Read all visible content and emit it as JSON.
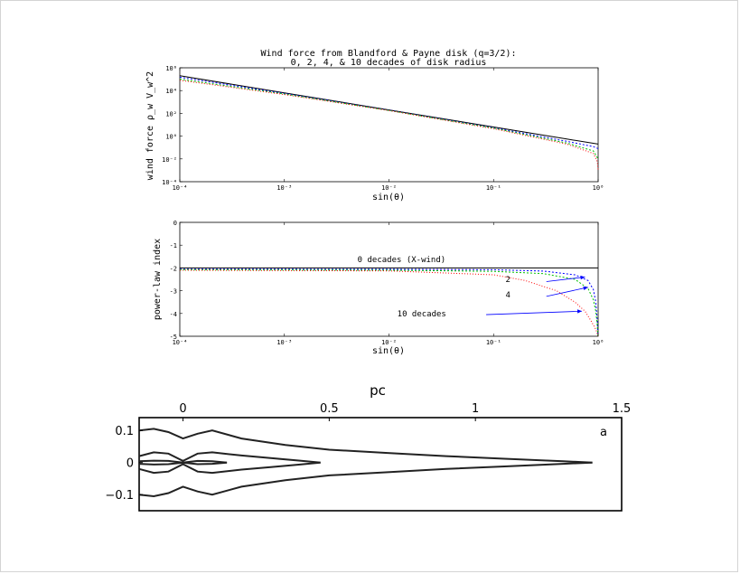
{
  "charts": {
    "top": {
      "type": "line",
      "title_line1": "Wind force from Blandford & Payne disk (q=3/2):",
      "title_line2": "0, 2, 4, & 10 decades of disk radius",
      "xlabel": "sin(θ)",
      "ylabel": "wind force ρ_w V_w^2",
      "x_scale": "log",
      "y_scale": "log",
      "xlim": [
        0.0001,
        1
      ],
      "ylim": [
        0.0001,
        1000000
      ],
      "xticks": [
        {
          "v": 0.0001,
          "label": "10⁻⁴"
        },
        {
          "v": 0.001,
          "label": "10⁻³"
        },
        {
          "v": 0.01,
          "label": "10⁻²"
        },
        {
          "v": 0.1,
          "label": "10⁻¹"
        },
        {
          "v": 1,
          "label": "10⁰"
        }
      ],
      "yticks": [
        {
          "v": 0.0001,
          "label": "10⁻⁴"
        },
        {
          "v": 0.01,
          "label": "10⁻²"
        },
        {
          "v": 1,
          "label": "10⁰"
        },
        {
          "v": 100,
          "label": "10²"
        },
        {
          "v": 10000,
          "label": "10⁴"
        },
        {
          "v": 1000000,
          "label": "10⁶"
        }
      ],
      "series": [
        {
          "color": "#000000",
          "dash": "",
          "x": [
            0.0001,
            0.001,
            0.01,
            0.1,
            0.5,
            1
          ],
          "y": [
            200000,
            6300,
            200,
            6.3,
            0.56,
            0.2
          ]
        },
        {
          "color": "#0000ff",
          "dash": "2,2",
          "x": [
            0.0001,
            0.001,
            0.01,
            0.1,
            0.5,
            0.9,
            1
          ],
          "y": [
            150000,
            5600,
            190,
            5.5,
            0.35,
            0.12,
            0.08
          ]
        },
        {
          "color": "#00c000",
          "dash": "2,2",
          "x": [
            0.0001,
            0.001,
            0.01,
            0.1,
            0.5,
            0.9,
            1
          ],
          "y": [
            100000,
            5000,
            180,
            5,
            0.25,
            0.05,
            0.01
          ]
        },
        {
          "color": "#ff0000",
          "dash": "1,2",
          "x": [
            0.0001,
            0.001,
            0.01,
            0.1,
            0.5,
            0.9,
            0.98,
            1
          ],
          "y": [
            80000,
            4500,
            175,
            4.5,
            0.2,
            0.03,
            0.006,
            0.0012
          ]
        }
      ]
    },
    "middle": {
      "type": "line",
      "xlabel": "sin(θ)",
      "ylabel": "power-law index",
      "x_scale": "log",
      "xlim": [
        0.0001,
        1
      ],
      "ylim": [
        -5,
        0
      ],
      "xticks": [
        {
          "v": 0.0001,
          "label": "10⁻⁴"
        },
        {
          "v": 0.001,
          "label": "10⁻³"
        },
        {
          "v": 0.01,
          "label": "10⁻²"
        },
        {
          "v": 0.1,
          "label": "10⁻¹"
        },
        {
          "v": 1,
          "label": "10⁰"
        }
      ],
      "yticks": [
        {
          "v": 0,
          "label": "0"
        },
        {
          "v": -1,
          "label": "-1"
        },
        {
          "v": -2,
          "label": "-2"
        },
        {
          "v": -3,
          "label": "-3"
        },
        {
          "v": -4,
          "label": "-4"
        },
        {
          "v": -5,
          "label": "-5"
        }
      ],
      "annotations": [
        {
          "label": "0 decades (X-wind)",
          "x": 0.005,
          "y": -1.75
        },
        {
          "label": "2",
          "x": 0.13,
          "y": -2.62
        },
        {
          "label": "4",
          "x": 0.13,
          "y": -3.3
        },
        {
          "label": "10 decades",
          "x": 0.012,
          "y": -4.12
        }
      ],
      "arrows": [
        {
          "from": [
            0.32,
            -2.6
          ],
          "to": [
            0.75,
            -2.4
          ]
        },
        {
          "from": [
            0.32,
            -3.25
          ],
          "to": [
            0.8,
            -2.85
          ]
        },
        {
          "from": [
            0.085,
            -4.05
          ],
          "to": [
            0.7,
            -3.9
          ]
        }
      ],
      "series": [
        {
          "color": "#000000",
          "dash": "",
          "x": [
            0.0001,
            0.01,
            0.5,
            1
          ],
          "y": [
            -2,
            -2,
            -2,
            -2
          ]
        },
        {
          "color": "#0000ff",
          "dash": "2,2",
          "x": [
            0.0001,
            0.01,
            0.1,
            0.3,
            0.6,
            0.8,
            0.9,
            0.95,
            0.98,
            0.995
          ],
          "y": [
            -2.05,
            -2.06,
            -2.08,
            -2.14,
            -2.3,
            -2.55,
            -2.95,
            -3.5,
            -4.3,
            -5
          ]
        },
        {
          "color": "#00c000",
          "dash": "2,2",
          "x": [
            0.0001,
            0.01,
            0.1,
            0.3,
            0.6,
            0.8,
            0.9,
            0.95,
            0.98,
            0.997
          ],
          "y": [
            -2.08,
            -2.1,
            -2.15,
            -2.25,
            -2.5,
            -2.9,
            -3.4,
            -3.9,
            -4.5,
            -5
          ]
        },
        {
          "color": "#ff0000",
          "dash": "1,2",
          "x": [
            0.0001,
            0.01,
            0.1,
            0.2,
            0.4,
            0.6,
            0.75,
            0.85,
            0.95,
            0.999
          ],
          "y": [
            -2.1,
            -2.13,
            -2.3,
            -2.55,
            -3.0,
            -3.5,
            -3.9,
            -4.3,
            -4.7,
            -5
          ]
        }
      ]
    },
    "bottom": {
      "type": "line",
      "xlabel": "pc",
      "panel_label": "a",
      "xlim": [
        -0.15,
        1.5
      ],
      "ylim": [
        -0.15,
        0.14
      ],
      "xticks": [
        {
          "v": 0,
          "label": "0"
        },
        {
          "v": 0.5,
          "label": "0.5"
        },
        {
          "v": 1,
          "label": "1"
        },
        {
          "v": 1.5,
          "label": "1.5"
        }
      ],
      "yticks": [
        {
          "v": 0.1,
          "label": "0.1"
        },
        {
          "v": 0,
          "label": "0"
        },
        {
          "v": -0.1,
          "label": "−0.1"
        }
      ],
      "series": [
        {
          "name": "",
          "color": "#222222",
          "x": [
            -0.15,
            -0.1,
            -0.05,
            0,
            0.05,
            0.1,
            0.2,
            0.35,
            0.5,
            0.7,
            0.9,
            1.1,
            1.3,
            1.4
          ],
          "y": [
            0.1,
            0.105,
            0.095,
            0.075,
            0.09,
            0.1,
            0.075,
            0.055,
            0.04,
            0.03,
            0.02,
            0.012,
            0.004,
            0
          ]
        },
        {
          "name": "",
          "color": "#222222",
          "x": [
            -0.15,
            -0.1,
            -0.05,
            0,
            0.05,
            0.1,
            0.2,
            0.35,
            0.5,
            0.7,
            0.9,
            1.1,
            1.3,
            1.4
          ],
          "y": [
            -0.1,
            -0.105,
            -0.095,
            -0.075,
            -0.09,
            -0.1,
            -0.075,
            -0.055,
            -0.04,
            -0.03,
            -0.02,
            -0.012,
            -0.004,
            0
          ]
        },
        {
          "name": "",
          "color": "#222222",
          "x": [
            -0.15,
            -0.1,
            -0.05,
            0,
            0.05,
            0.1,
            0.2,
            0.3,
            0.4,
            0.47
          ],
          "y": [
            0.02,
            0.032,
            0.028,
            0.005,
            0.028,
            0.032,
            0.022,
            0.014,
            0.006,
            0
          ]
        },
        {
          "name": "",
          "color": "#222222",
          "x": [
            -0.15,
            -0.1,
            -0.05,
            0,
            0.05,
            0.1,
            0.2,
            0.3,
            0.4,
            0.47
          ],
          "y": [
            -0.02,
            -0.032,
            -0.028,
            -0.005,
            -0.028,
            -0.032,
            -0.022,
            -0.014,
            -0.006,
            0
          ]
        },
        {
          "name": "",
          "color": "#222222",
          "x": [
            -0.15,
            -0.1,
            -0.05,
            0,
            0.05,
            0.1,
            0.15
          ],
          "y": [
            0.004,
            0.006,
            0.005,
            0,
            0.005,
            0.004,
            0
          ]
        },
        {
          "name": "",
          "color": "#222222",
          "x": [
            -0.15,
            -0.1,
            -0.05,
            0,
            0.05,
            0.1,
            0.15
          ],
          "y": [
            -0.004,
            -0.006,
            -0.005,
            0,
            -0.005,
            -0.004,
            0
          ]
        }
      ]
    }
  }
}
